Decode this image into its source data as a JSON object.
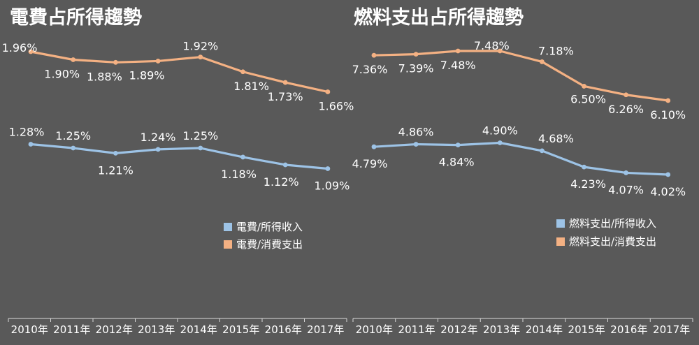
{
  "chart_data": [
    {
      "type": "line",
      "title": "電費占所得趨勢",
      "categories": [
        "2010年",
        "2011年",
        "2012年",
        "2013年",
        "2014年",
        "2015年",
        "2016年",
        "2017年"
      ],
      "series": [
        {
          "name": "電費/所得收入",
          "values": [
            1.28,
            1.25,
            1.21,
            1.24,
            1.25,
            1.18,
            1.12,
            1.09
          ],
          "labels": [
            "1.28%",
            "1.25%",
            "1.21%",
            "1.24%",
            "1.25%",
            "1.18%",
            "1.12%",
            "1.09%"
          ],
          "color": "#9dc3e6"
        },
        {
          "name": "電費/消費支出",
          "values": [
            1.96,
            1.9,
            1.88,
            1.89,
            1.92,
            1.81,
            1.73,
            1.66
          ],
          "labels": [
            "1.96%",
            "1.90%",
            "1.88%",
            "1.89%",
            "1.92%",
            "1.81%",
            "1.73%",
            "1.66%"
          ],
          "color": "#f4b183"
        }
      ],
      "legend": "middle-right",
      "grid": false
    },
    {
      "type": "line",
      "title": "燃料支出占所得趨勢",
      "categories": [
        "2010年",
        "2011年",
        "2012年",
        "2013年",
        "2014年",
        "2015年",
        "2016年",
        "2017年"
      ],
      "series": [
        {
          "name": "燃料支出/所得收入",
          "values": [
            4.79,
            4.86,
            4.84,
            4.9,
            4.68,
            4.23,
            4.07,
            4.02
          ],
          "labels": [
            "4.79%",
            "4.86%",
            "4.84%",
            "4.90%",
            "4.68%",
            "4.23%",
            "4.07%",
            "4.02%"
          ],
          "color": "#9dc3e6"
        },
        {
          "name": "燃料支出/消費支出",
          "values": [
            7.36,
            7.39,
            7.48,
            7.48,
            7.18,
            6.5,
            6.26,
            6.1
          ],
          "labels": [
            "7.36%",
            "7.39%",
            "7.48%",
            "7.48%",
            "7.18%",
            "6.50%",
            "6.26%",
            "6.10%"
          ],
          "color": "#f4b183"
        }
      ],
      "legend": "middle-right",
      "grid": false
    }
  ]
}
